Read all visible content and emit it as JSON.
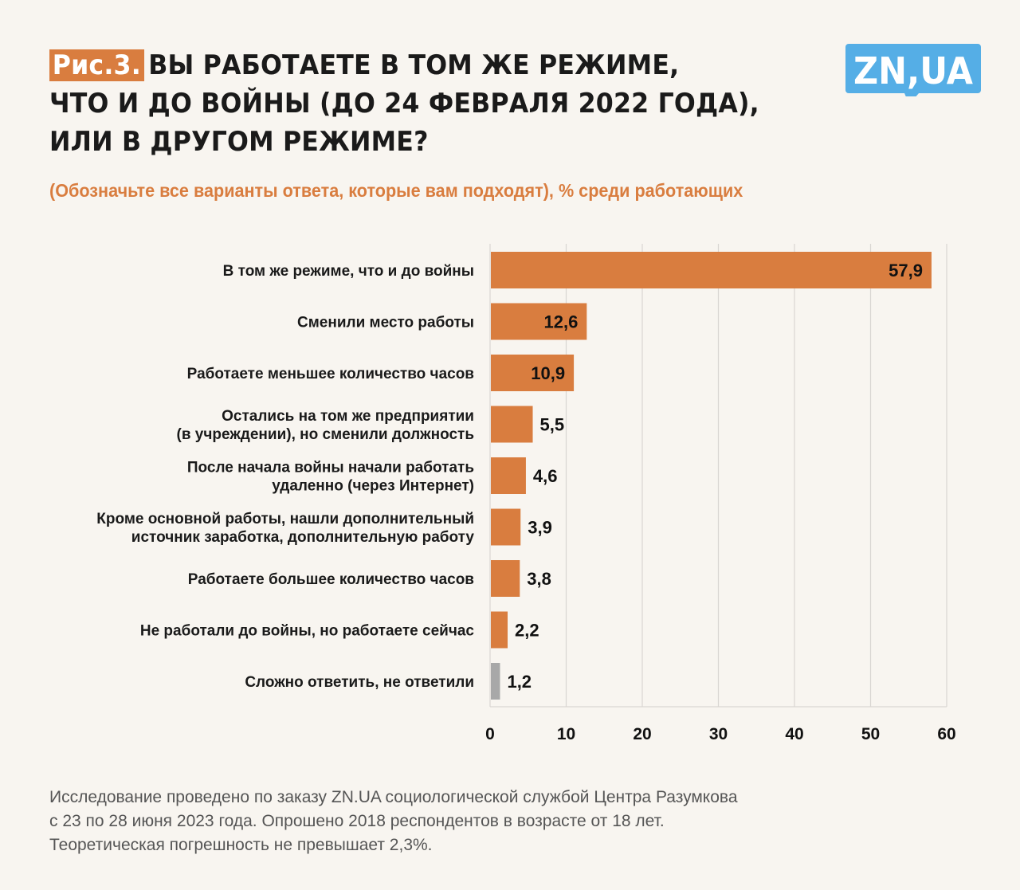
{
  "header": {
    "figure_tag": "Рис.3.",
    "title_lines": [
      "ВЫ РАБОТАЕТЕ В ТОМ ЖЕ РЕЖИМЕ,",
      "ЧТО И ДО ВОЙНЫ (ДО 24 ФЕВРАЛЯ 2022 ГОДА),",
      "ИЛИ В ДРУГОМ РЕЖИМЕ?"
    ],
    "subtitle": "(Обозначьте все варианты ответа, которые вам подходят), % среди работающих",
    "logo_text": "ZN,UA"
  },
  "colors": {
    "accent": "#d97d3f",
    "bar": "#d97d3f",
    "bar_undecided": "#a8a8a8",
    "logo": "#55aee6",
    "background": "#f8f5f0",
    "grid": "#d9d6d2"
  },
  "chart_data": {
    "type": "bar",
    "orientation": "horizontal",
    "title": "ВЫ РАБОТАЕТЕ В ТОМ ЖЕ РЕЖИМЕ, ЧТО И ДО ВОЙНЫ (ДО 24 ФЕВРАЛЯ 2022 ГОДА), ИЛИ В ДРУГОМ РЕЖИМЕ?",
    "subtitle": "(Обозначьте все варианты ответа, которые вам подходят), % среди работающих",
    "xlabel": "",
    "ylabel": "",
    "xlim": [
      0,
      60
    ],
    "xticks": [
      0,
      10,
      20,
      30,
      40,
      50,
      60
    ],
    "xtick_labels": [
      "0",
      "10",
      "20",
      "30",
      "40",
      "50",
      "60"
    ],
    "grid": true,
    "categories": [
      [
        "В том же режиме, что и до войны"
      ],
      [
        "Сменили место работы"
      ],
      [
        "Работаете меньшее количество часов"
      ],
      [
        "Остались на том же предприятии",
        "(в учреждении), но сменили должность"
      ],
      [
        "После начала войны начали работать",
        "удаленно (через Интернет)"
      ],
      [
        "Кроме основной работы, нашли дополнительный",
        "источник заработка, дополнительную работу"
      ],
      [
        "Работаете большее количество часов"
      ],
      [
        "Не работали до войны, но работаете сейчас"
      ],
      [
        "Сложно ответить, не ответили"
      ]
    ],
    "values": [
      57.9,
      12.6,
      10.9,
      5.5,
      4.6,
      3.9,
      3.8,
      2.2,
      1.2
    ],
    "value_labels": [
      "57,9",
      "12,6",
      "10,9",
      "5,5",
      "4,6",
      "3,9",
      "3,8",
      "2,2",
      "1,2"
    ],
    "bar_color_keys": [
      "bar",
      "bar",
      "bar",
      "bar",
      "bar",
      "bar",
      "bar",
      "bar",
      "bar_undecided"
    ]
  },
  "footer": {
    "lines": [
      "Исследование проведено по заказу ZN.UA социологической службой Центра Разумкова",
      "с 23 по 28 июня 2023 года. Опрошено 2018 респондентов в возрасте от 18 лет.",
      "Теоретическая погрешность не превышает 2,3%."
    ]
  }
}
